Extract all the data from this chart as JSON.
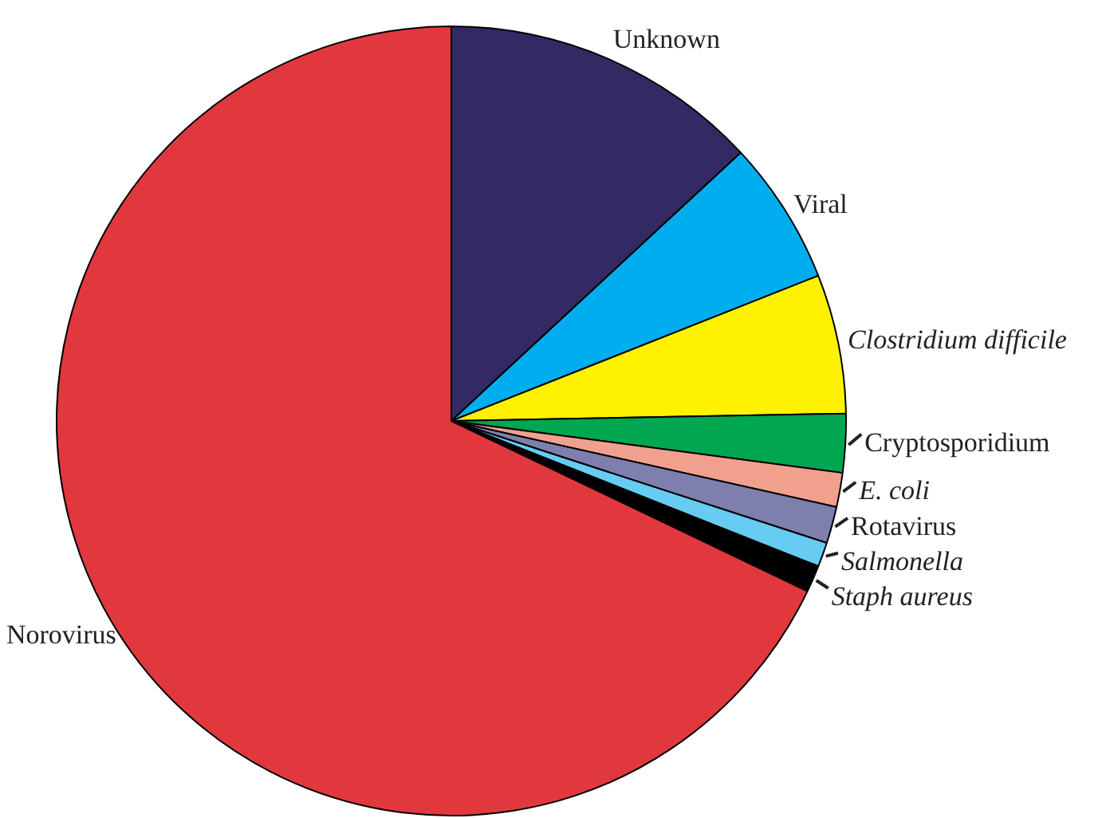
{
  "chart_data": {
    "type": "pie",
    "categories": [
      "Unknown",
      "Viral",
      "Clostridium difficile",
      "Cryptosporidium",
      "E. coli",
      "Rotavirus",
      "Salmonella",
      "Staph aureus",
      "Norovirus"
    ],
    "values": [
      13.1,
      5.9,
      5.7,
      2.4,
      1.4,
      1.5,
      1.0,
      1.1,
      67.9
    ],
    "colors": [
      "#332a63",
      "#00aeef",
      "#fff200",
      "#00a650",
      "#f2a08e",
      "#7f7fae",
      "#66ccf2",
      "#000000",
      "#e1383e"
    ],
    "legend": false
  }
}
